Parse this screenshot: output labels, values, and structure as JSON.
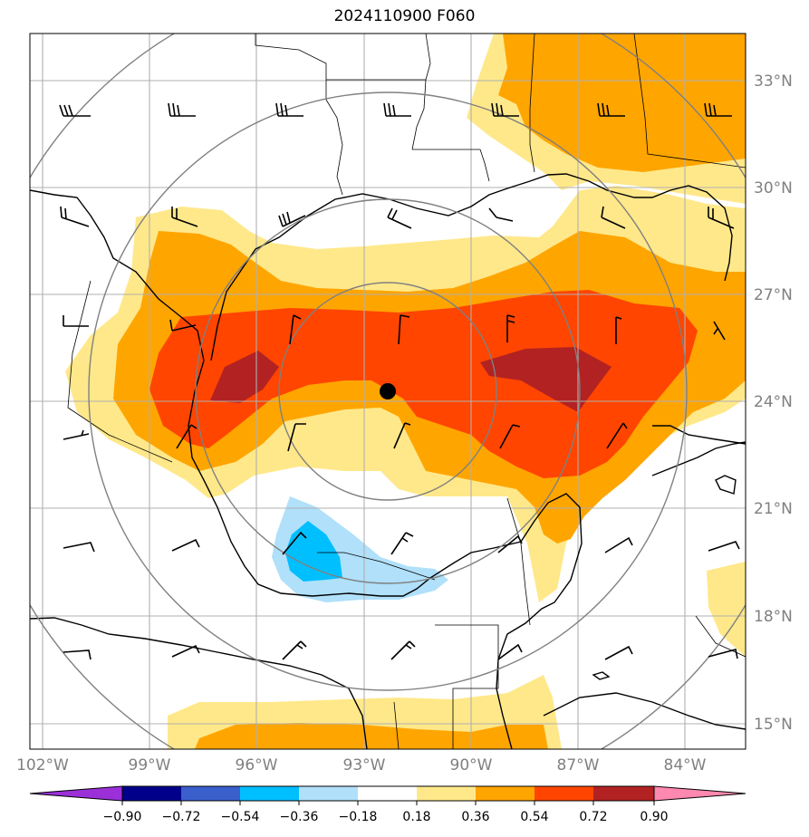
{
  "title": "2024110900 F060",
  "lat_labels": [
    "33°N",
    "30°N",
    "27°N",
    "24°N",
    "21°N",
    "18°N",
    "15°N"
  ],
  "lon_labels": [
    "102°W",
    "99°W",
    "96°W",
    "93°W",
    "90°W",
    "87°W",
    "84°W"
  ],
  "colorbar": {
    "ticks": [
      "−0.90",
      "−0.72",
      "−0.54",
      "−0.36",
      "−0.18",
      "0.18",
      "0.36",
      "0.54",
      "0.72",
      "0.90"
    ],
    "colors": [
      "#9b30d9",
      "#00008b",
      "#3a5fcd",
      "#00bfff",
      "#b0e0fa",
      "#ffffff",
      "#ffe88a",
      "#ffa500",
      "#ff4500",
      "#b22222",
      "#ff88b0"
    ]
  },
  "colors": {
    "level_0_18": "#ffe88a",
    "level_0_36": "#ffa500",
    "level_0_54": "#ff4500",
    "level_0_72": "#b22222",
    "level_neg_0_18": "#b0e0fa",
    "level_neg_0_36": "#00bfff",
    "grid": "#b0b0b0",
    "range_rings": "#808080",
    "coastline": "#000000"
  },
  "center_marker": "storm-center-dot"
}
